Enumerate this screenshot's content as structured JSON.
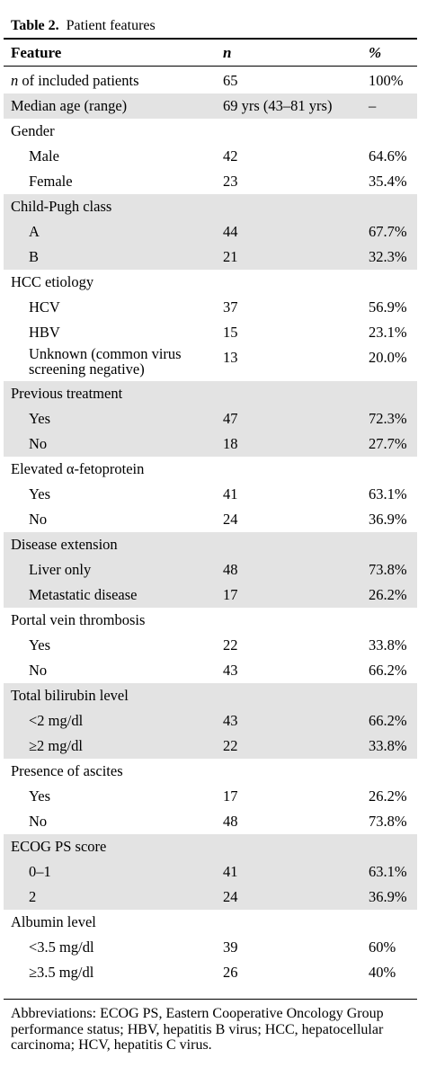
{
  "caption": {
    "label": "Table 2.",
    "title": "Patient features"
  },
  "columns": {
    "feature": "Feature",
    "n": "n",
    "pct": "%"
  },
  "groups": [
    {
      "shade": false,
      "rows": [
        {
          "feature_prefix": "n",
          "feature": " of included patients",
          "n": "65",
          "pct": "100%",
          "sub": false
        }
      ]
    },
    {
      "shade": true,
      "rows": [
        {
          "feature": "Median age (range)",
          "n": "69 yrs (43–81 yrs)",
          "pct": "–",
          "sub": false
        }
      ]
    },
    {
      "shade": false,
      "rows": [
        {
          "feature": "Gender",
          "n": "",
          "pct": "",
          "sub": false
        },
        {
          "feature": "Male",
          "n": "42",
          "pct": "64.6%",
          "sub": true
        },
        {
          "feature": "Female",
          "n": "23",
          "pct": "35.4%",
          "sub": true
        }
      ]
    },
    {
      "shade": true,
      "rows": [
        {
          "feature": "Child-Pugh class",
          "n": "",
          "pct": "",
          "sub": false
        },
        {
          "feature": "A",
          "n": "44",
          "pct": "67.7%",
          "sub": true
        },
        {
          "feature": "B",
          "n": "21",
          "pct": "32.3%",
          "sub": true
        }
      ]
    },
    {
      "shade": false,
      "rows": [
        {
          "feature": "HCC etiology",
          "n": "",
          "pct": "",
          "sub": false
        },
        {
          "feature": "HCV",
          "n": "37",
          "pct": "56.9%",
          "sub": true
        },
        {
          "feature": "HBV",
          "n": "15",
          "pct": "23.1%",
          "sub": true
        },
        {
          "feature": "Unknown (common virus screening negative)",
          "n": "13",
          "pct": "20.0%",
          "sub": true,
          "tall": true
        }
      ]
    },
    {
      "shade": true,
      "rows": [
        {
          "feature": "Previous treatment",
          "n": "",
          "pct": "",
          "sub": false
        },
        {
          "feature": "Yes",
          "n": "47",
          "pct": "72.3%",
          "sub": true
        },
        {
          "feature": "No",
          "n": "18",
          "pct": "27.7%",
          "sub": true
        }
      ]
    },
    {
      "shade": false,
      "rows": [
        {
          "feature": "Elevated α-fetoprotein",
          "n": "",
          "pct": "",
          "sub": false
        },
        {
          "feature": "Yes",
          "n": "41",
          "pct": "63.1%",
          "sub": true
        },
        {
          "feature": "No",
          "n": "24",
          "pct": "36.9%",
          "sub": true
        }
      ]
    },
    {
      "shade": true,
      "rows": [
        {
          "feature": "Disease extension",
          "n": "",
          "pct": "",
          "sub": false
        },
        {
          "feature": "Liver only",
          "n": "48",
          "pct": "73.8%",
          "sub": true
        },
        {
          "feature": "Metastatic disease",
          "n": "17",
          "pct": "26.2%",
          "sub": true
        }
      ]
    },
    {
      "shade": false,
      "rows": [
        {
          "feature": "Portal vein thrombosis",
          "n": "",
          "pct": "",
          "sub": false
        },
        {
          "feature": "Yes",
          "n": "22",
          "pct": "33.8%",
          "sub": true
        },
        {
          "feature": "No",
          "n": "43",
          "pct": "66.2%",
          "sub": true
        }
      ]
    },
    {
      "shade": true,
      "rows": [
        {
          "feature": "Total bilirubin level",
          "n": "",
          "pct": "",
          "sub": false
        },
        {
          "feature": "<2 mg/dl",
          "n": "43",
          "pct": "66.2%",
          "sub": true
        },
        {
          "feature": "≥2 mg/dl",
          "n": "22",
          "pct": "33.8%",
          "sub": true
        }
      ]
    },
    {
      "shade": false,
      "rows": [
        {
          "feature": "Presence of ascites",
          "n": "",
          "pct": "",
          "sub": false
        },
        {
          "feature": "Yes",
          "n": "17",
          "pct": "26.2%",
          "sub": true
        },
        {
          "feature": "No",
          "n": "48",
          "pct": "73.8%",
          "sub": true
        }
      ]
    },
    {
      "shade": true,
      "rows": [
        {
          "feature": "ECOG PS score",
          "n": "",
          "pct": "",
          "sub": false
        },
        {
          "feature": "0–1",
          "n": "41",
          "pct": "63.1%",
          "sub": true
        },
        {
          "feature": "2",
          "n": "24",
          "pct": "36.9%",
          "sub": true
        }
      ]
    },
    {
      "shade": false,
      "rows": [
        {
          "feature": "Albumin level",
          "n": "",
          "pct": "",
          "sub": false
        },
        {
          "feature": "<3.5 mg/dl",
          "n": "39",
          "pct": "60%",
          "sub": true
        },
        {
          "feature": "≥3.5 mg/dl",
          "n": "26",
          "pct": "40%",
          "sub": true
        }
      ]
    }
  ],
  "footnote": "Abbreviations: ECOG PS, Eastern Cooperative Oncology Group performance status; HBV, hepatitis B virus; HCC, hepatocellular carcinoma; HCV, hepatitis C virus.",
  "colors": {
    "shade": "#e3e3e3",
    "text": "#000000",
    "rule": "#000000"
  }
}
